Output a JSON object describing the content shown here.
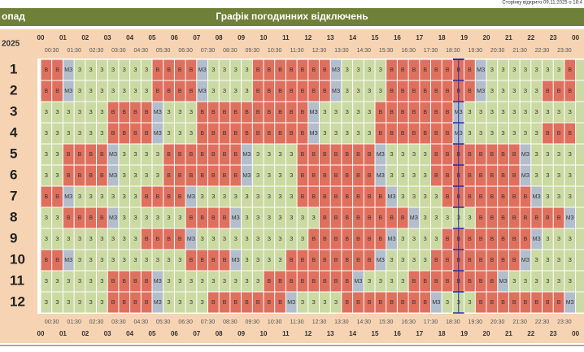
{
  "page_note": "Сторінку відкрито 09.11.2025 о 18:4",
  "header": {
    "title": "Графік погодинних відключень",
    "month": "опад",
    "year": "2025"
  },
  "hours": [
    "00",
    "01",
    "02",
    "03",
    "04",
    "05",
    "06",
    "07",
    "08",
    "09",
    "10",
    "11",
    "12",
    "13",
    "14",
    "15",
    "16",
    "17",
    "18",
    "19",
    "20",
    "21",
    "22",
    "23",
    "00"
  ],
  "half_hours": [
    "00:30",
    "01:30",
    "02:30",
    "03:30",
    "04:30",
    "05:30",
    "06:30",
    "07:30",
    "08:30",
    "09:30",
    "10:30",
    "11:30",
    "12:30",
    "13:30",
    "14:30",
    "15:30",
    "16:30",
    "17:30",
    "18:30",
    "19:30",
    "20:30",
    "21:30",
    "22:30",
    "23:30"
  ],
  "cell_colors": {
    "В": "#e0705e",
    "З": "#cbdaa2",
    "МЗ": "#b3becc"
  },
  "rows": [
    {
      "label": "1",
      "cells": [
        "В",
        "В",
        "МЗ",
        "З",
        "З",
        "З",
        "З",
        "З",
        "З",
        "З",
        "В",
        "В",
        "В",
        "В",
        "МЗ",
        "З",
        "З",
        "З",
        "З",
        "В",
        "В",
        "В",
        "В",
        "В",
        "В",
        "В",
        "МЗ",
        "З",
        "З",
        "З",
        "З",
        "В",
        "В",
        "В",
        "В",
        "В",
        "В",
        "В",
        "В",
        "МЗ",
        "З",
        "З",
        "З",
        "З",
        "З",
        "З",
        "З",
        "В"
      ]
    },
    {
      "label": "2",
      "cells": [
        "В",
        "В",
        "МЗ",
        "З",
        "З",
        "З",
        "З",
        "З",
        "З",
        "З",
        "В",
        "В",
        "В",
        "В",
        "МЗ",
        "З",
        "З",
        "З",
        "З",
        "В",
        "В",
        "В",
        "В",
        "В",
        "В",
        "В",
        "МЗ",
        "З",
        "З",
        "З",
        "З",
        "В",
        "В",
        "В",
        "В",
        "В",
        "В",
        "В",
        "В",
        "МЗ",
        "З",
        "З",
        "З",
        "З",
        "З",
        "В",
        "В",
        "В"
      ]
    },
    {
      "label": "3",
      "cells": [
        "З",
        "З",
        "З",
        "З",
        "З",
        "З",
        "В",
        "В",
        "В",
        "В",
        "МЗ",
        "З",
        "З",
        "З",
        "В",
        "В",
        "В",
        "В",
        "В",
        "В",
        "В",
        "В",
        "В",
        "В",
        "МЗ",
        "З",
        "З",
        "З",
        "З",
        "З",
        "В",
        "В",
        "В",
        "В",
        "В",
        "В",
        "В",
        "МЗ",
        "З",
        "З",
        "З",
        "З",
        "З",
        "З",
        "З",
        "З",
        "З",
        "З"
      ]
    },
    {
      "label": "4",
      "cells": [
        "З",
        "З",
        "З",
        "З",
        "З",
        "З",
        "В",
        "В",
        "В",
        "В",
        "МЗ",
        "З",
        "З",
        "З",
        "В",
        "В",
        "В",
        "В",
        "В",
        "В",
        "В",
        "В",
        "В",
        "В",
        "МЗ",
        "З",
        "З",
        "З",
        "З",
        "З",
        "В",
        "В",
        "В",
        "В",
        "В",
        "В",
        "В",
        "МЗ",
        "З",
        "З",
        "З",
        "З",
        "З",
        "З",
        "З",
        "В",
        "В",
        "В"
      ]
    },
    {
      "label": "5",
      "cells": [
        "З",
        "З",
        "В",
        "В",
        "В",
        "В",
        "МЗ",
        "З",
        "З",
        "З",
        "З",
        "В",
        "В",
        "В",
        "В",
        "В",
        "В",
        "В",
        "МЗ",
        "З",
        "З",
        "З",
        "З",
        "В",
        "В",
        "В",
        "В",
        "В",
        "В",
        "В",
        "МЗ",
        "З",
        "З",
        "З",
        "З",
        "В",
        "В",
        "В",
        "В",
        "В",
        "В",
        "В",
        "В",
        "МЗ",
        "З",
        "З",
        "З",
        "З"
      ]
    },
    {
      "label": "6",
      "cells": [
        "З",
        "З",
        "В",
        "В",
        "В",
        "В",
        "МЗ",
        "З",
        "З",
        "З",
        "З",
        "В",
        "В",
        "В",
        "В",
        "В",
        "В",
        "В",
        "МЗ",
        "З",
        "З",
        "З",
        "З",
        "В",
        "В",
        "В",
        "В",
        "В",
        "В",
        "В",
        "МЗ",
        "З",
        "З",
        "З",
        "З",
        "В",
        "В",
        "В",
        "В",
        "В",
        "В",
        "В",
        "В",
        "МЗ",
        "З",
        "З",
        "З",
        "З"
      ]
    },
    {
      "label": "7",
      "cells": [
        "В",
        "В",
        "МЗ",
        "З",
        "З",
        "З",
        "З",
        "З",
        "З",
        "В",
        "В",
        "В",
        "В",
        "МЗ",
        "З",
        "З",
        "З",
        "З",
        "З",
        "З",
        "З",
        "З",
        "З",
        "В",
        "В",
        "В",
        "В",
        "В",
        "В",
        "В",
        "В",
        "МЗ",
        "З",
        "З",
        "З",
        "З",
        "В",
        "В",
        "В",
        "В",
        "В",
        "В",
        "В",
        "В",
        "МЗ",
        "З",
        "З",
        "З"
      ]
    },
    {
      "label": "8",
      "cells": [
        "З",
        "З",
        "В",
        "В",
        "В",
        "В",
        "МЗ",
        "З",
        "З",
        "З",
        "З",
        "З",
        "З",
        "В",
        "В",
        "В",
        "В",
        "МЗ",
        "З",
        "З",
        "З",
        "З",
        "З",
        "З",
        "З",
        "В",
        "В",
        "В",
        "В",
        "В",
        "В",
        "В",
        "В",
        "МЗ",
        "З",
        "З",
        "З",
        "З",
        "З",
        "В",
        "В",
        "В",
        "В",
        "В",
        "В",
        "В",
        "В",
        "МЗ"
      ]
    },
    {
      "label": "9",
      "cells": [
        "З",
        "З",
        "З",
        "З",
        "З",
        "З",
        "З",
        "З",
        "З",
        "В",
        "В",
        "В",
        "В",
        "МЗ",
        "З",
        "З",
        "З",
        "З",
        "З",
        "З",
        "З",
        "З",
        "З",
        "З",
        "В",
        "В",
        "В",
        "В",
        "В",
        "В",
        "В",
        "МЗ",
        "З",
        "З",
        "З",
        "З",
        "В",
        "В",
        "В",
        "В",
        "В",
        "В",
        "В",
        "В",
        "МЗ",
        "З",
        "З",
        "З"
      ]
    },
    {
      "label": "10",
      "cells": [
        "В",
        "В",
        "МЗ",
        "З",
        "З",
        "З",
        "З",
        "З",
        "З",
        "З",
        "З",
        "З",
        "З",
        "В",
        "В",
        "В",
        "В",
        "МЗ",
        "З",
        "З",
        "З",
        "З",
        "В",
        "В",
        "В",
        "В",
        "В",
        "В",
        "В",
        "В",
        "МЗ",
        "З",
        "З",
        "З",
        "З",
        "В",
        "В",
        "В",
        "В",
        "В",
        "В",
        "В",
        "В",
        "МЗ",
        "З",
        "З",
        "З",
        "З"
      ]
    },
    {
      "label": "11",
      "cells": [
        "З",
        "З",
        "З",
        "З",
        "З",
        "З",
        "В",
        "В",
        "В",
        "В",
        "МЗ",
        "З",
        "З",
        "З",
        "З",
        "З",
        "З",
        "З",
        "З",
        "З",
        "В",
        "В",
        "В",
        "В",
        "В",
        "В",
        "В",
        "В",
        "МЗ",
        "З",
        "З",
        "З",
        "З",
        "В",
        "В",
        "В",
        "В",
        "В",
        "В",
        "В",
        "В",
        "МЗ",
        "З",
        "З",
        "З",
        "З",
        "З",
        "З"
      ]
    },
    {
      "label": "12",
      "cells": [
        "З",
        "З",
        "З",
        "З",
        "З",
        "З",
        "В",
        "В",
        "В",
        "В",
        "МЗ",
        "З",
        "З",
        "З",
        "З",
        "В",
        "В",
        "В",
        "В",
        "В",
        "В",
        "В",
        "МЗ",
        "З",
        "З",
        "З",
        "З",
        "В",
        "В",
        "В",
        "В",
        "В",
        "В",
        "В",
        "В",
        "МЗ",
        "З",
        "З",
        "З",
        "В",
        "В",
        "В",
        "В",
        "В",
        "В",
        "В",
        "В",
        "МЗ"
      ]
    }
  ]
}
